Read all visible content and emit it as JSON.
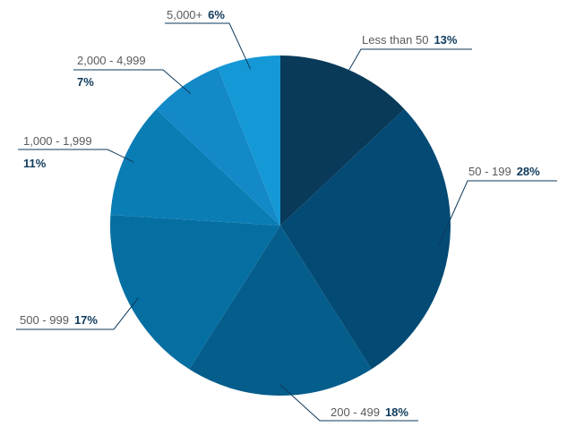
{
  "chart_data": {
    "type": "pie",
    "title": "",
    "slices": [
      {
        "label": "Less than 50",
        "value": 13,
        "value_label": "13%",
        "color": "#093a59"
      },
      {
        "label": "50 - 199",
        "value": 28,
        "value_label": "28%",
        "color": "#034a74"
      },
      {
        "label": "200 - 499",
        "value": 18,
        "value_label": "18%",
        "color": "#055d8b"
      },
      {
        "label": "500 - 999",
        "value": 17,
        "value_label": "17%",
        "color": "#066fa2"
      },
      {
        "label": "1,000 - 1,999",
        "value": 11,
        "value_label": "11%",
        "color": "#0a7db4"
      },
      {
        "label": "2,000 - 4,999",
        "value": 7,
        "value_label": "7%",
        "color": "#1389c8"
      },
      {
        "label": "5,000+",
        "value": 6,
        "value_label": "6%",
        "color": "#1598d6"
      }
    ],
    "start": "12 o'clock",
    "direction": "clockwise",
    "legend": "none",
    "label_style": "outside labels with leader lines"
  }
}
